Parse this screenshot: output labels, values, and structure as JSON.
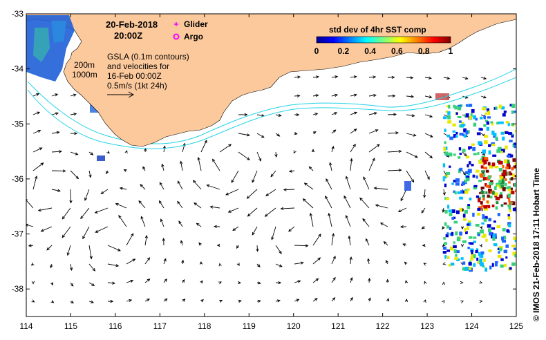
{
  "map": {
    "date_label": "20-Feb-2018",
    "time_label": "20:00Z",
    "legend": {
      "glider_label": "Glider",
      "argo_label": "Argo",
      "glider_color": "#ff00ff",
      "argo_color": "#ff00ff"
    },
    "gsla_note": [
      "GSLA (0.1m contours)",
      "and velocities for",
      "16-Feb 00:00Z",
      "0.5m/s (1kt 24h)"
    ],
    "depth_labels": [
      "200m",
      "1000m"
    ],
    "colorbar": {
      "title": "std dev of 4hr SST comp",
      "ticks": [
        "0",
        "0.2",
        "0.4",
        "0.6",
        "0.8",
        "1"
      ]
    },
    "credit": "© IMOS 21-Feb-2018 17:11 Hobart Time",
    "x_ticks": [
      "114",
      "115",
      "116",
      "117",
      "118",
      "119",
      "120",
      "121",
      "122",
      "123",
      "124",
      "125"
    ],
    "y_ticks": [
      "-33",
      "-34",
      "-35",
      "-36",
      "-37",
      "-38"
    ],
    "lon_range": [
      114,
      125
    ],
    "lat_range": [
      -38.5,
      -33
    ],
    "colors": {
      "land": "#fcc99c",
      "isobath": "#22d3e6",
      "vector": "#000000"
    }
  }
}
